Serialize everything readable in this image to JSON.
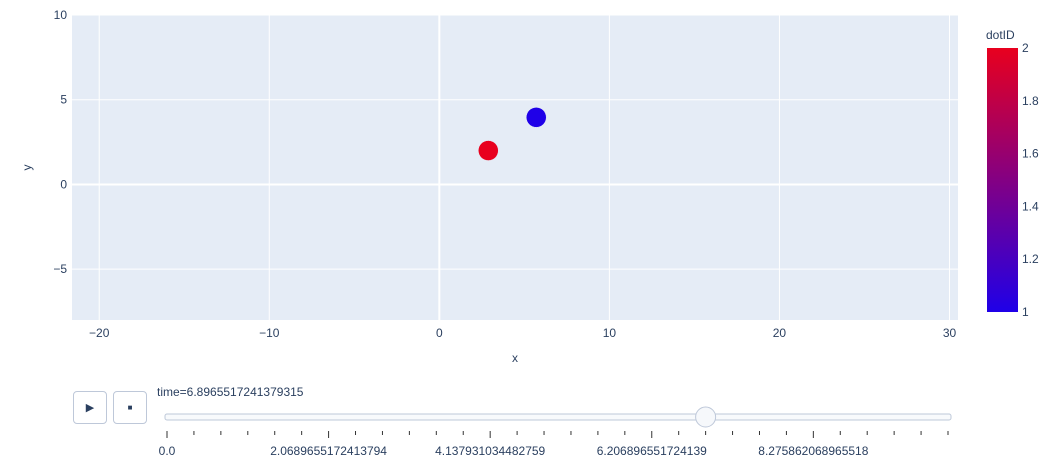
{
  "chart_data": {
    "type": "scatter",
    "xlabel": "x",
    "ylabel": "y",
    "xlim": [
      -21.6,
      30.5
    ],
    "ylim": [
      -8,
      10
    ],
    "xticks": [
      -20,
      -10,
      0,
      10,
      20,
      30
    ],
    "yticks": [
      -5,
      0,
      5,
      10
    ],
    "grid": true,
    "points": [
      {
        "x": 2.88,
        "y": 2.0,
        "dotID": 2,
        "color": "#e8001e"
      },
      {
        "x": 5.7,
        "y": 3.96,
        "dotID": 1,
        "color": "#1f00e8"
      }
    ],
    "colorbar": {
      "title": "dotID",
      "range": [
        1,
        2
      ],
      "ticks": [
        "1",
        "1.2",
        "1.4",
        "1.6",
        "1.8",
        "2"
      ],
      "colors": [
        "#1f00e8",
        "#e8001e"
      ]
    },
    "background": "#e5ecf6"
  },
  "animation": {
    "play_icon": "play-icon",
    "stop_icon": "stop-icon",
    "current_label": "time=6.8965517241379315",
    "steps": 30,
    "active_step": 20,
    "tick_labels": [
      "0.0",
      "2.0689655172413794",
      "4.137931034482759",
      "6.206896551724139",
      "8.275862068965518"
    ]
  }
}
